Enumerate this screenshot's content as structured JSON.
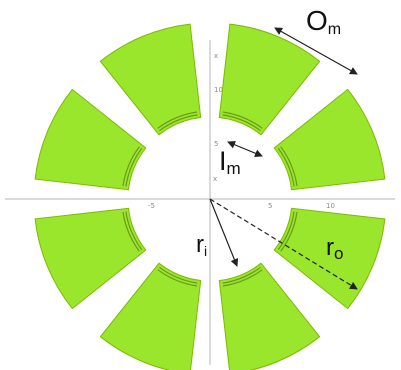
{
  "colors": {
    "segment_fill": "#99e62d",
    "segment_edge": "#7fb800",
    "axis": "#b5b5b5",
    "annotation": "#222222"
  },
  "segment_count": 8,
  "labels": {
    "outer_arc": "O",
    "outer_arc_sub": "m",
    "inner_arc": "I",
    "inner_arc_sub": "m",
    "inner_radius": "r",
    "inner_radius_sub": "i",
    "outer_radius": "r",
    "outer_radius_sub": "o"
  },
  "axis_ticks": {
    "y_top": "x",
    "y_upper": "10",
    "y_mid": "5",
    "y_near": "x",
    "x_left": "-5",
    "x_right_1": "5",
    "x_right_2": "10"
  }
}
